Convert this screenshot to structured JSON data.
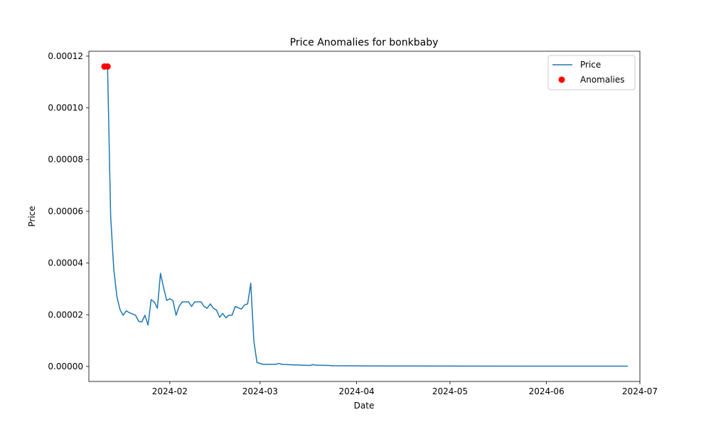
{
  "chart_data": {
    "type": "line",
    "title": "Price Anomalies for bonkbaby",
    "xlabel": "Date",
    "ylabel": "Price",
    "ylim": [
      -5.8e-06,
      0.0001219
    ],
    "xlim": [
      "2024-01-06",
      "2024-07-01"
    ],
    "grid": false,
    "legend_position": "top-right",
    "x_ticks": [
      "2024-02-01",
      "2024-03-01",
      "2024-04-01",
      "2024-05-01",
      "2024-06-01",
      "2024-07-01"
    ],
    "x_tick_labels": [
      "2024-02",
      "2024-03",
      "2024-04",
      "2024-05",
      "2024-06",
      "2024-07"
    ],
    "y_ticks": [
      0,
      2e-05,
      4e-05,
      6e-05,
      8e-05,
      0.0001,
      0.00012
    ],
    "y_tick_labels": [
      "0.00000",
      "0.00002",
      "0.00004",
      "0.00006",
      "0.00008",
      "0.00010",
      "0.00012"
    ],
    "colors": {
      "price": "#1f77b4",
      "anomalies": "#ff0000"
    },
    "series": [
      {
        "name": "Price",
        "kind": "line",
        "points": [
          [
            "2024-01-11",
            0.000116
          ],
          [
            "2024-01-12",
            0.000116
          ],
          [
            "2024-01-13",
            5.8e-05
          ],
          [
            "2024-01-14",
            3.75e-05
          ],
          [
            "2024-01-15",
            2.7e-05
          ],
          [
            "2024-01-16",
            2.2e-05
          ],
          [
            "2024-01-17",
            1.98e-05
          ],
          [
            "2024-01-18",
            2.15e-05
          ],
          [
            "2024-01-19",
            2.08e-05
          ],
          [
            "2024-01-21",
            1.98e-05
          ],
          [
            "2024-01-22",
            1.75e-05
          ],
          [
            "2024-01-23",
            1.72e-05
          ],
          [
            "2024-01-24",
            1.98e-05
          ],
          [
            "2024-01-25",
            1.6e-05
          ],
          [
            "2024-01-26",
            2.58e-05
          ],
          [
            "2024-01-27",
            2.5e-05
          ],
          [
            "2024-01-28",
            2.25e-05
          ],
          [
            "2024-01-29",
            3.6e-05
          ],
          [
            "2024-01-30",
            3.05e-05
          ],
          [
            "2024-01-31",
            2.55e-05
          ],
          [
            "2024-02-01",
            2.62e-05
          ],
          [
            "2024-02-02",
            2.55e-05
          ],
          [
            "2024-02-03",
            1.98e-05
          ],
          [
            "2024-02-04",
            2.33e-05
          ],
          [
            "2024-02-05",
            2.5e-05
          ],
          [
            "2024-02-07",
            2.5e-05
          ],
          [
            "2024-02-08",
            2.32e-05
          ],
          [
            "2024-02-09",
            2.5e-05
          ],
          [
            "2024-02-11",
            2.5e-05
          ],
          [
            "2024-02-12",
            2.32e-05
          ],
          [
            "2024-02-13",
            2.25e-05
          ],
          [
            "2024-02-14",
            2.42e-05
          ],
          [
            "2024-02-15",
            2.25e-05
          ],
          [
            "2024-02-16",
            2.18e-05
          ],
          [
            "2024-02-17",
            1.9e-05
          ],
          [
            "2024-02-18",
            2.05e-05
          ],
          [
            "2024-02-19",
            1.88e-05
          ],
          [
            "2024-02-20",
            1.98e-05
          ],
          [
            "2024-02-21",
            1.98e-05
          ],
          [
            "2024-02-22",
            2.32e-05
          ],
          [
            "2024-02-24",
            2.22e-05
          ],
          [
            "2024-02-25",
            2.38e-05
          ],
          [
            "2024-02-26",
            2.42e-05
          ],
          [
            "2024-02-27",
            3.22e-05
          ],
          [
            "2024-02-28",
            9.8e-06
          ],
          [
            "2024-02-29",
            1.5e-06
          ],
          [
            "2024-03-02",
            8e-07
          ],
          [
            "2024-03-06",
            8e-07
          ],
          [
            "2024-03-07",
            1.2e-06
          ],
          [
            "2024-03-08",
            8e-07
          ],
          [
            "2024-03-12",
            6e-07
          ],
          [
            "2024-03-17",
            4e-07
          ],
          [
            "2024-03-18",
            7e-07
          ],
          [
            "2024-03-19",
            5e-07
          ],
          [
            "2024-03-23",
            4e-07
          ],
          [
            "2024-03-24",
            3e-07
          ],
          [
            "2024-04-05",
            2e-07
          ],
          [
            "2024-06-27",
            1e-07
          ]
        ]
      },
      {
        "name": "Anomalies",
        "kind": "scatter",
        "points": [
          [
            "2024-01-11",
            0.000116
          ],
          [
            "2024-01-12",
            0.000116
          ]
        ]
      }
    ]
  }
}
